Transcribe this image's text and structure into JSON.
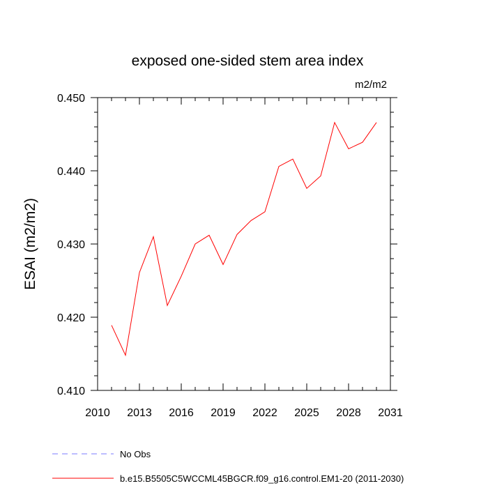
{
  "chart_data": {
    "type": "line",
    "title": "exposed one-sided stem area index",
    "units_label": "m2/m2",
    "ylabel": "ESAI  (m2/m2)",
    "xlabel": "",
    "xlim": [
      2010,
      2031
    ],
    "ylim": [
      0.41,
      0.45
    ],
    "xticks": [
      2010,
      2013,
      2016,
      2019,
      2022,
      2025,
      2028,
      2031
    ],
    "xtick_labels": [
      "2010",
      "2013",
      "2016",
      "2019",
      "2022",
      "2025",
      "2028",
      "2031"
    ],
    "yticks": [
      0.41,
      0.42,
      0.43,
      0.44,
      0.45
    ],
    "ytick_labels": [
      "0.410",
      "0.420",
      "0.430",
      "0.440",
      "0.450"
    ],
    "grid": false,
    "series": [
      {
        "name": "b.e15.B5505C5WCCML45BGCR.f09_g16.control.EM1-20 (2011-2030)",
        "color": "#ff0000",
        "x": [
          2011,
          2012,
          2013,
          2014,
          2015,
          2016,
          2017,
          2018,
          2019,
          2020,
          2021,
          2022,
          2023,
          2024,
          2025,
          2026,
          2027,
          2028,
          2029,
          2030
        ],
        "y": [
          0.4189,
          0.4148,
          0.4261,
          0.431,
          0.4216,
          0.4256,
          0.43,
          0.4312,
          0.4272,
          0.4313,
          0.4332,
          0.4344,
          0.4406,
          0.4416,
          0.4376,
          0.4393,
          0.4466,
          0.443,
          0.4439,
          0.4466
        ]
      }
    ],
    "legend": {
      "placement": "bottom",
      "entries": [
        {
          "label": "No Obs",
          "color": "#7b7bff",
          "style": "dashed"
        },
        {
          "label": "b.e15.B5505C5WCCML45BGCR.f09_g16.control.EM1-20 (2011-2030)",
          "color": "#ff0000",
          "style": "solid"
        }
      ]
    }
  }
}
